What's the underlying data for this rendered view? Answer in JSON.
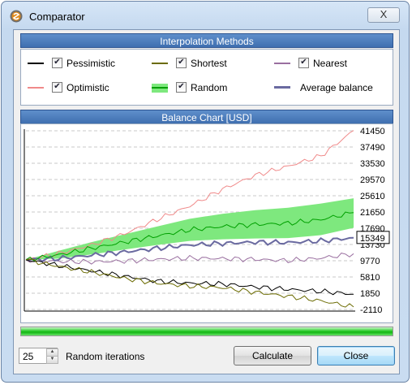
{
  "window": {
    "title": "Comparator",
    "close_glyph": "X"
  },
  "interpolation": {
    "header": "Interpolation Methods",
    "methods": [
      {
        "label": "Pessimistic",
        "checked": true,
        "color": "#000000"
      },
      {
        "label": "Shortest",
        "checked": true,
        "color": "#6b6b00"
      },
      {
        "label": "Nearest",
        "checked": true,
        "color": "#9a6fa0"
      },
      {
        "label": "Optimistic",
        "checked": true,
        "color": "#f08a8a"
      },
      {
        "label": "Random",
        "checked": true,
        "color": "#00a000",
        "band_color": "#7ee87e"
      },
      {
        "label": "Average balance",
        "checked": false,
        "color": "#6a6aa0"
      }
    ]
  },
  "chart": {
    "header": "Balance Chart [USD]",
    "current_value_label": "15349",
    "chart_data": {
      "type": "line",
      "title": "Balance Chart [USD]",
      "xlabel": "",
      "ylabel": "USD",
      "ylim": [
        -2110,
        41450
      ],
      "y_ticks": [
        -2110,
        1850,
        5810,
        9770,
        13730,
        17690,
        21650,
        25610,
        29570,
        33530,
        37490,
        41450
      ],
      "y_tick_labels": [
        "-2110",
        "1850",
        "5810",
        "9770",
        "13730",
        "17690",
        "21650",
        "25610",
        "29570",
        "33530",
        "37490",
        "41450"
      ],
      "grid": true,
      "x": [
        0,
        10,
        20,
        30,
        40,
        50,
        60,
        70,
        80,
        90,
        100
      ],
      "series": [
        {
          "name": "Optimistic",
          "color": "#f08a8a",
          "values": [
            10000,
            11500,
            13600,
            16300,
            19800,
            23100,
            27200,
            30600,
            32800,
            35300,
            41500
          ]
        },
        {
          "name": "Random",
          "color": "#00a000",
          "values": [
            10000,
            11200,
            12800,
            14300,
            15800,
            17300,
            18100,
            18600,
            18900,
            19800,
            21500
          ]
        },
        {
          "name": "Random band upper",
          "color": "#7ee87e",
          "values": [
            10000,
            12200,
            14300,
            16200,
            18100,
            20000,
            21200,
            22100,
            22700,
            23700,
            25000
          ]
        },
        {
          "name": "Random band lower",
          "color": "#7ee87e",
          "values": [
            10000,
            10300,
            11300,
            12500,
            13600,
            14600,
            15000,
            15200,
            15300,
            16000,
            17800
          ]
        },
        {
          "name": "Average balance",
          "color": "#6a6aa0",
          "values": [
            10000,
            10300,
            11100,
            11900,
            12800,
            13600,
            14000,
            14300,
            14200,
            14600,
            15349
          ]
        },
        {
          "name": "Nearest",
          "color": "#9a6fa0",
          "values": [
            10000,
            9600,
            9500,
            9700,
            10100,
            10400,
            10300,
            10100,
            9800,
            10400,
            11500
          ]
        },
        {
          "name": "Pessimistic",
          "color": "#000000",
          "values": [
            10000,
            8600,
            7300,
            6000,
            4800,
            4300,
            4100,
            3400,
            2800,
            2300,
            1600
          ]
        },
        {
          "name": "Shortest",
          "color": "#6b6b00",
          "values": [
            10000,
            8400,
            7000,
            5500,
            4300,
            3600,
            3200,
            2100,
            1100,
            0,
            -1500
          ]
        }
      ]
    }
  },
  "progress": {
    "value": 1.0
  },
  "controls": {
    "iterations_value": "25",
    "iterations_label": "Random iterations",
    "calculate_label": "Calculate",
    "close_label": "Close"
  }
}
